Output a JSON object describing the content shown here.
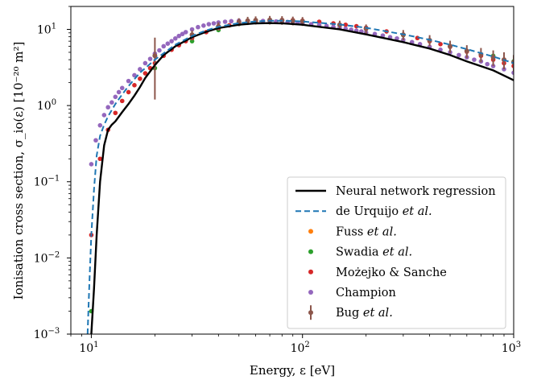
{
  "chart_data": {
    "type": "scatter",
    "xlabel": "Energy, ε [eV]",
    "ylabel": "Ionisation cross section, σ_io(ε) [10⁻²⁰ m²]",
    "xscale": "log",
    "yscale": "log",
    "xlim": [
      8,
      1000
    ],
    "ylim": [
      0.001,
      20
    ],
    "x_ticks": [
      {
        "value": 10,
        "base": "10",
        "exp": "1"
      },
      {
        "value": 100,
        "base": "10",
        "exp": "2"
      },
      {
        "value": 1000,
        "base": "10",
        "exp": "3"
      }
    ],
    "y_ticks": [
      {
        "value": 0.001,
        "base": "10",
        "exp": "−3"
      },
      {
        "value": 0.01,
        "base": "10",
        "exp": "−2"
      },
      {
        "value": 0.1,
        "base": "10",
        "exp": "−1"
      },
      {
        "value": 1,
        "base": "10",
        "exp": "0"
      },
      {
        "value": 10,
        "base": "10",
        "exp": "1"
      }
    ],
    "legend_position": "lower-right",
    "grid": false,
    "series": [
      {
        "name": "Neural network regression",
        "kind": "line",
        "color": "#000000",
        "dash": "solid",
        "x": [
          10.0,
          10.3,
          10.6,
          11.0,
          11.5,
          12.0,
          12.5,
          13.0,
          14.0,
          15.0,
          16.0,
          17.0,
          18.0,
          20.0,
          22.0,
          25.0,
          30.0,
          35.0,
          40.0,
          50.0,
          60.0,
          70.0,
          80.0,
          100.0,
          150.0,
          200.0,
          300.0,
          400.0,
          500.0,
          600.0,
          800.0,
          1000.0
        ],
        "y": [
          0.001,
          0.004,
          0.02,
          0.1,
          0.3,
          0.48,
          0.56,
          0.62,
          0.82,
          1.05,
          1.35,
          1.75,
          2.3,
          3.4,
          4.6,
          6.0,
          7.9,
          9.3,
          10.4,
          11.5,
          12.0,
          12.1,
          12.0,
          11.5,
          10.0,
          8.6,
          6.8,
          5.6,
          4.6,
          3.8,
          2.9,
          2.15
        ]
      },
      {
        "name": "de Urquijo et al.",
        "kind": "line",
        "color": "#1f77b4",
        "dash": "dashed",
        "x": [
          9.6,
          9.8,
          10.0,
          10.3,
          10.6,
          11.0,
          11.5,
          12.0,
          13.0,
          14.0,
          15.0,
          17.0,
          20.0,
          25.0,
          30.0,
          35.0,
          40.0,
          50.0,
          60.0,
          70.0,
          80.0,
          100.0,
          150.0,
          200.0,
          300.0,
          400.0,
          500.0,
          600.0,
          800.0,
          1000.0
        ],
        "y": [
          0.001,
          0.005,
          0.02,
          0.08,
          0.22,
          0.4,
          0.56,
          0.72,
          1.05,
          1.4,
          1.8,
          2.7,
          4.0,
          6.3,
          8.2,
          9.7,
          10.8,
          12.1,
          12.7,
          13.0,
          13.0,
          12.7,
          11.6,
          10.5,
          8.6,
          7.3,
          6.3,
          5.5,
          4.4,
          3.6
        ]
      },
      {
        "name": "Fuss et al.",
        "kind": "points",
        "color": "#ff7f0e",
        "x": [],
        "y": []
      },
      {
        "name": "Swadia et al.",
        "kind": "points",
        "color": "#2ca02c",
        "x": [
          10.0,
          20.0,
          30.0,
          40.0,
          50.0,
          60.0,
          70.0,
          80.0,
          90.0,
          100.0,
          150.0,
          200.0,
          300.0,
          400.0,
          500.0,
          600.0,
          800.0,
          1000.0
        ],
        "y": [
          0.002,
          3.1,
          7.0,
          9.8,
          11.8,
          12.5,
          13.0,
          12.9,
          12.6,
          12.3,
          11.3,
          10.3,
          8.4,
          7.0,
          6.0,
          5.2,
          4.5,
          3.8
        ]
      },
      {
        "name": "Możejko & Sanche",
        "kind": "points",
        "color": "#d62728",
        "x": [
          10.0,
          11.0,
          12.0,
          13.0,
          14.0,
          15.0,
          16.0,
          17.0,
          18.0,
          19.0,
          20.0,
          22.0,
          24.0,
          26.0,
          28.0,
          30.0,
          35.0,
          40.0,
          45.0,
          50.0,
          60.0,
          70.0,
          80.0,
          90.0,
          100.0,
          120.0,
          140.0,
          160.0,
          180.0,
          200.0,
          250.0,
          300.0,
          350.0,
          400.0,
          450.0,
          500.0,
          600.0,
          700.0,
          800.0,
          900.0,
          1000.0
        ],
        "y": [
          0.02,
          0.2,
          0.48,
          0.8,
          1.15,
          1.5,
          1.85,
          2.25,
          2.65,
          3.1,
          3.6,
          4.5,
          5.4,
          6.2,
          7.0,
          7.7,
          9.2,
          10.4,
          11.3,
          12.0,
          12.8,
          13.2,
          13.3,
          13.2,
          13.0,
          12.6,
          12.0,
          11.5,
          11.0,
          10.5,
          9.4,
          8.5,
          7.7,
          7.0,
          6.4,
          5.9,
          5.1,
          4.5,
          4.0,
          3.6,
          3.3
        ]
      },
      {
        "name": "Champion",
        "kind": "points",
        "color": "#9467bd",
        "x": [
          10.0,
          10.5,
          11.0,
          11.5,
          12.0,
          12.5,
          13.0,
          13.5,
          14.0,
          15.0,
          16.0,
          17.0,
          18.0,
          19.0,
          20.0,
          21.0,
          22.0,
          23.0,
          24.0,
          25.0,
          26.0,
          27.0,
          28.0,
          30.0,
          32.0,
          34.0,
          36.0,
          38.0,
          40.0,
          43.0,
          46.0,
          50.0,
          55.0,
          60.0,
          65.0,
          70.0,
          75.0,
          80.0,
          85.0,
          90.0,
          95.0,
          100.0,
          110.0,
          120.0,
          130.0,
          140.0,
          150.0,
          160.0,
          170.0,
          180.0,
          190.0,
          200.0,
          220.0,
          240.0,
          260.0,
          280.0,
          300.0,
          330.0,
          360.0,
          400.0,
          450.0,
          500.0,
          550.0,
          600.0,
          650.0,
          700.0,
          750.0,
          800.0,
          900.0,
          1000.0
        ],
        "y": [
          0.17,
          0.35,
          0.55,
          0.75,
          0.95,
          1.1,
          1.3,
          1.5,
          1.7,
          2.1,
          2.5,
          3.0,
          3.6,
          4.1,
          4.8,
          5.3,
          6.0,
          6.5,
          7.0,
          7.6,
          8.2,
          8.7,
          9.2,
          10.0,
          10.7,
          11.2,
          11.7,
          12.0,
          12.3,
          12.6,
          12.8,
          13.0,
          13.0,
          13.0,
          12.9,
          12.8,
          12.7,
          12.6,
          12.5,
          12.3,
          12.2,
          12.0,
          11.7,
          11.4,
          11.1,
          10.8,
          10.5,
          10.2,
          9.9,
          9.6,
          9.4,
          9.1,
          8.7,
          8.3,
          7.9,
          7.6,
          7.3,
          6.8,
          6.4,
          5.9,
          5.4,
          5.0,
          4.6,
          4.3,
          4.0,
          3.8,
          3.5,
          3.3,
          3.0,
          2.7
        ]
      },
      {
        "name": "Bug et al.",
        "kind": "errorbar",
        "color": "#8c564b",
        "x": [
          20.0,
          30.0,
          40.0,
          50.0,
          55.0,
          60.0,
          70.0,
          80.0,
          90.0,
          100.0,
          150.0,
          200.0,
          300.0,
          400.0,
          500.0,
          600.0,
          700.0,
          800.0,
          900.0,
          1000.0
        ],
        "y": [
          4.5,
          8.5,
          11.0,
          12.5,
          13.0,
          13.2,
          13.3,
          13.2,
          13.0,
          12.8,
          11.5,
          10.2,
          8.5,
          7.2,
          6.0,
          5.2,
          4.7,
          4.3,
          4.0,
          3.7
        ],
        "err": [
          3.3,
          1.2,
          1.4,
          1.5,
          1.6,
          1.6,
          1.7,
          1.7,
          1.7,
          1.7,
          1.5,
          1.4,
          1.3,
          1.2,
          1.1,
          1.0,
          1.0,
          1.0,
          1.0,
          0.9
        ]
      }
    ]
  },
  "legend": {
    "entries": [
      {
        "kind": "line",
        "color": "#000000",
        "dash": "solid",
        "label": "Neural network regression",
        "label_prefix": "Neural network regression",
        "label_italic": ""
      },
      {
        "kind": "line",
        "color": "#1f77b4",
        "dash": "dashed",
        "label": "de Urquijo et al.",
        "label_prefix": "de Urquijo ",
        "label_italic": "et al."
      },
      {
        "kind": "dot",
        "color": "#ff7f0e",
        "label": "Fuss et al.",
        "label_prefix": "Fuss ",
        "label_italic": "et al."
      },
      {
        "kind": "dot",
        "color": "#2ca02c",
        "label": "Swadia et al.",
        "label_prefix": "Swadia ",
        "label_italic": "et al."
      },
      {
        "kind": "dot",
        "color": "#d62728",
        "label": "Możejko & Sanche",
        "label_prefix": "Możejko & Sanche",
        "label_italic": ""
      },
      {
        "kind": "dot",
        "color": "#9467bd",
        "label": "Champion",
        "label_prefix": "Champion",
        "label_italic": ""
      },
      {
        "kind": "errorbar",
        "color": "#8c564b",
        "label": "Bug et al.",
        "label_prefix": "Bug ",
        "label_italic": "et al."
      }
    ]
  }
}
